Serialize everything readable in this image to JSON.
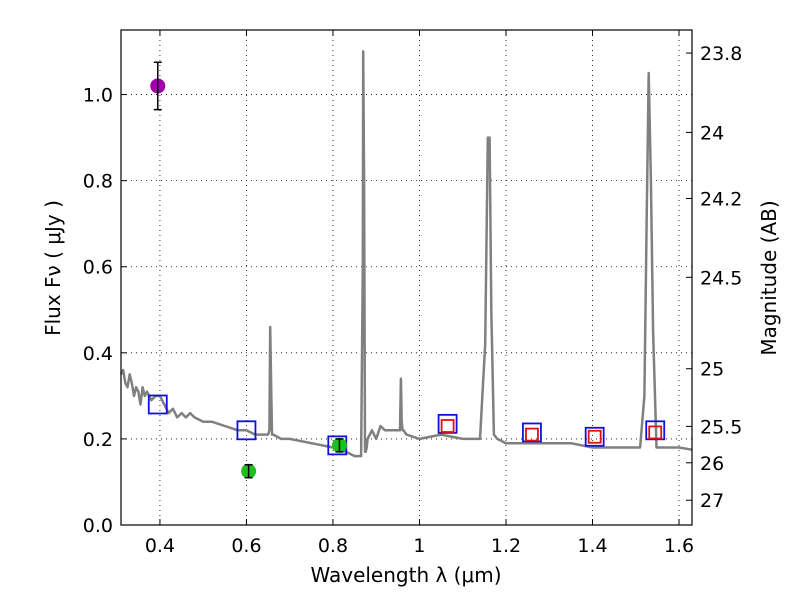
{
  "chart_data": {
    "type": "line",
    "title": "",
    "xlabel": "Wavelength  λ (μm)",
    "ylabel": "Flux  Fν  ( μJy )",
    "ylabel_right": "Magnitude (AB)",
    "xlim": [
      0.31,
      1.63
    ],
    "ylim": [
      0.0,
      1.15
    ],
    "grid": true,
    "x_ticks": [
      0.4,
      0.6,
      0.8,
      1.0,
      1.2,
      1.4,
      1.6
    ],
    "x_tick_labels": [
      "0.4",
      "0.6",
      "0.8",
      "1",
      "1.2",
      "1.4",
      "1.6"
    ],
    "y_ticks": [
      0.0,
      0.2,
      0.4,
      0.6,
      0.8,
      1.0
    ],
    "y_tick_labels": [
      "0.0",
      "0.2",
      "0.4",
      "0.6",
      "0.8",
      "1.0"
    ],
    "right_axis_labels": [
      "23.8",
      "24",
      "24.2",
      "24.5",
      "25",
      "25.5",
      "26",
      "27"
    ],
    "colors": {
      "model": "#808080",
      "magenta": "#a000a8",
      "green": "#1fbf1f",
      "blue_square": "#1010e0",
      "red_square": "#e01010",
      "errorbar": "#000000"
    },
    "series": [
      {
        "name": "model spectrum",
        "style": "line",
        "x": [
          0.31,
          0.315,
          0.32,
          0.325,
          0.33,
          0.335,
          0.34,
          0.345,
          0.35,
          0.355,
          0.36,
          0.365,
          0.37,
          0.38,
          0.39,
          0.4,
          0.405,
          0.41,
          0.42,
          0.43,
          0.44,
          0.45,
          0.46,
          0.47,
          0.48,
          0.5,
          0.52,
          0.55,
          0.58,
          0.6,
          0.62,
          0.64,
          0.65,
          0.653,
          0.655,
          0.657,
          0.659,
          0.662,
          0.68,
          0.7,
          0.75,
          0.8,
          0.83,
          0.85,
          0.865,
          0.869,
          0.87,
          0.872,
          0.874,
          0.876,
          0.878,
          0.88,
          0.89,
          0.9,
          0.91,
          0.92,
          0.93,
          0.94,
          0.955,
          0.957,
          0.959,
          0.961,
          0.963,
          0.97,
          1.0,
          1.05,
          1.1,
          1.14,
          1.152,
          1.158,
          1.162,
          1.166,
          1.172,
          1.18,
          1.2,
          1.25,
          1.3,
          1.35,
          1.4,
          1.45,
          1.5,
          1.51,
          1.52,
          1.525,
          1.53,
          1.535,
          1.54,
          1.548,
          1.555,
          1.6,
          1.63
        ],
        "y": [
          0.35,
          0.36,
          0.33,
          0.32,
          0.35,
          0.33,
          0.3,
          0.32,
          0.31,
          0.28,
          0.32,
          0.3,
          0.31,
          0.29,
          0.3,
          0.3,
          0.29,
          0.28,
          0.26,
          0.27,
          0.25,
          0.26,
          0.25,
          0.26,
          0.25,
          0.24,
          0.24,
          0.23,
          0.22,
          0.22,
          0.21,
          0.21,
          0.21,
          0.22,
          0.46,
          0.33,
          0.21,
          0.21,
          0.2,
          0.2,
          0.19,
          0.18,
          0.17,
          0.16,
          0.16,
          0.6,
          1.1,
          0.8,
          0.17,
          0.17,
          0.18,
          0.2,
          0.22,
          0.2,
          0.23,
          0.22,
          0.22,
          0.22,
          0.22,
          0.34,
          0.24,
          0.22,
          0.22,
          0.21,
          0.2,
          0.21,
          0.2,
          0.2,
          0.42,
          0.9,
          0.9,
          0.5,
          0.21,
          0.2,
          0.19,
          0.19,
          0.19,
          0.19,
          0.18,
          0.18,
          0.18,
          0.18,
          0.3,
          0.7,
          1.05,
          0.8,
          0.45,
          0.18,
          0.18,
          0.18,
          0.175
        ]
      },
      {
        "name": "magenta point",
        "style": "circle",
        "x": [
          0.395
        ],
        "y": [
          1.02
        ],
        "yerr": [
          0.055
        ]
      },
      {
        "name": "green points",
        "style": "circle",
        "x": [
          0.605,
          0.815
        ],
        "y": [
          0.125,
          0.185
        ],
        "yerr": [
          0.015,
          0.015
        ]
      },
      {
        "name": "model photometry (blue squares)",
        "style": "square",
        "x": [
          0.395,
          0.6,
          0.81,
          1.065,
          1.26,
          1.405,
          1.545
        ],
        "y": [
          0.28,
          0.22,
          0.185,
          0.235,
          0.215,
          0.205,
          0.22
        ]
      },
      {
        "name": "red squares",
        "style": "square",
        "x": [
          1.065,
          1.26,
          1.405,
          1.545
        ],
        "y": [
          0.23,
          0.21,
          0.205,
          0.215
        ]
      }
    ]
  }
}
